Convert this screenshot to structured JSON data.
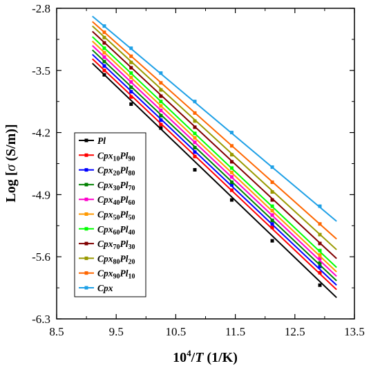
{
  "chart_data": {
    "type": "line",
    "xlabel_base": "10",
    "xlabel_sup": "4",
    "xlabel_var": "T",
    "xlabel_unit": " (1/K)",
    "ylabel_pre": "Log [",
    "ylabel_sym": "σ",
    "ylabel_post": " (S/m)]",
    "xlim": [
      8.5,
      13.5
    ],
    "ylim": [
      -6.3,
      -2.8
    ],
    "xticks": [
      "8.5",
      "9.5",
      "10.5",
      "11.5",
      "12.5",
      "13.5"
    ],
    "yticks": [
      "-2.8",
      "-3.5",
      "-4.2",
      "-4.9",
      "-5.6",
      "-6.3"
    ],
    "xtick_values": [
      8.5,
      9.5,
      10.5,
      11.5,
      12.5,
      13.5
    ],
    "ytick_values": [
      -2.8,
      -3.5,
      -4.2,
      -4.9,
      -5.6,
      -6.3
    ],
    "x_points": [
      9.3,
      9.75,
      10.25,
      10.82,
      11.44,
      12.12,
      12.92
    ],
    "line_x_range": [
      9.1,
      13.2
    ],
    "legend_position": "middle-left",
    "series": [
      {
        "name": "Pl",
        "label": [
          {
            "t": "Pl"
          }
        ],
        "color": "#000000",
        "line": [
          -3.42,
          -6.06
        ],
        "values": [
          -3.55,
          -3.88,
          -4.15,
          -4.62,
          -4.96,
          -5.42,
          -5.92
        ]
      },
      {
        "name": "Cpx10Pl90",
        "label": [
          {
            "t": "Cpx"
          },
          {
            "t": "10",
            "s": true
          },
          {
            "t": "Pl"
          },
          {
            "t": "90",
            "s": true
          }
        ],
        "color": "#ff0000",
        "line": [
          -3.37,
          -5.97
        ],
        "values": [
          -3.5,
          -3.8,
          -4.11,
          -4.47,
          -4.85,
          -5.27,
          -5.78
        ]
      },
      {
        "name": "Cpx20Pl80",
        "label": [
          {
            "t": "Cpx"
          },
          {
            "t": "20",
            "s": true
          },
          {
            "t": "Pl"
          },
          {
            "t": "80",
            "s": true
          }
        ],
        "color": "#0000ff",
        "line": [
          -3.32,
          -5.92
        ],
        "values": [
          -3.45,
          -3.74,
          -4.06,
          -4.42,
          -4.79,
          -5.23,
          -5.71
        ]
      },
      {
        "name": "Cpx30Pl70",
        "label": [
          {
            "t": "Cpx"
          },
          {
            "t": "30",
            "s": true
          },
          {
            "t": "Pl"
          },
          {
            "t": "70",
            "s": true
          }
        ],
        "color": "#008000",
        "line": [
          -3.27,
          -5.87
        ],
        "values": [
          -3.4,
          -3.69,
          -4.01,
          -4.37,
          -4.76,
          -5.19,
          -5.67
        ]
      },
      {
        "name": "Cpx40Pl60",
        "label": [
          {
            "t": "Cpx"
          },
          {
            "t": "40",
            "s": true
          },
          {
            "t": "Pl"
          },
          {
            "t": "60",
            "s": true
          }
        ],
        "color": "#ff00cc",
        "line": [
          -3.22,
          -5.82
        ],
        "values": [
          -3.35,
          -3.63,
          -3.95,
          -4.31,
          -4.7,
          -5.13,
          -5.62
        ]
      },
      {
        "name": "Cpx50Pl50",
        "label": [
          {
            "t": "Cpx"
          },
          {
            "t": "50",
            "s": true
          },
          {
            "t": "Pl"
          },
          {
            "t": "50",
            "s": true
          }
        ],
        "color": "#ff9900",
        "line": [
          -3.17,
          -5.77
        ],
        "values": [
          -3.3,
          -3.58,
          -3.9,
          -4.26,
          -4.65,
          -5.08,
          -5.58
        ]
      },
      {
        "name": "Cpx60Pl40",
        "label": [
          {
            "t": "Cpx"
          },
          {
            "t": "60",
            "s": true
          },
          {
            "t": "Pl"
          },
          {
            "t": "40",
            "s": true
          }
        ],
        "color": "#00ff00",
        "line": [
          -3.12,
          -5.72
        ],
        "values": [
          -3.25,
          -3.53,
          -3.85,
          -4.21,
          -4.6,
          -5.03,
          -5.53
        ]
      },
      {
        "name": "Cpx70Pl30",
        "label": [
          {
            "t": "Cpx"
          },
          {
            "t": "70",
            "s": true
          },
          {
            "t": "Pl"
          },
          {
            "t": "30",
            "s": true
          }
        ],
        "color": "#800000",
        "line": [
          -3.06,
          -5.62
        ],
        "values": [
          -3.19,
          -3.47,
          -3.79,
          -4.14,
          -4.53,
          -4.96,
          -5.45
        ]
      },
      {
        "name": "Cpx80Pl20",
        "label": [
          {
            "t": "Cpx"
          },
          {
            "t": "80",
            "s": true
          },
          {
            "t": "Pl"
          },
          {
            "t": "20",
            "s": true
          }
        ],
        "color": "#999900",
        "line": [
          -3.0,
          -5.52
        ],
        "values": [
          -3.13,
          -3.41,
          -3.72,
          -4.07,
          -4.45,
          -4.87,
          -5.35
        ]
      },
      {
        "name": "Cpx90Pl10",
        "label": [
          {
            "t": "Cpx"
          },
          {
            "t": "90",
            "s": true
          },
          {
            "t": "Pl"
          },
          {
            "t": "10",
            "s": true
          }
        ],
        "color": "#ff6600",
        "line": [
          -2.95,
          -5.4
        ],
        "values": [
          -3.07,
          -3.34,
          -3.64,
          -3.98,
          -4.35,
          -4.76,
          -5.23
        ]
      },
      {
        "name": "Cpx",
        "label": [
          {
            "t": "Cpx"
          }
        ],
        "color": "#1ea0e6",
        "line": [
          -2.89,
          -5.2
        ],
        "values": [
          -3.0,
          -3.25,
          -3.53,
          -3.85,
          -4.2,
          -4.59,
          -5.03
        ]
      }
    ]
  }
}
